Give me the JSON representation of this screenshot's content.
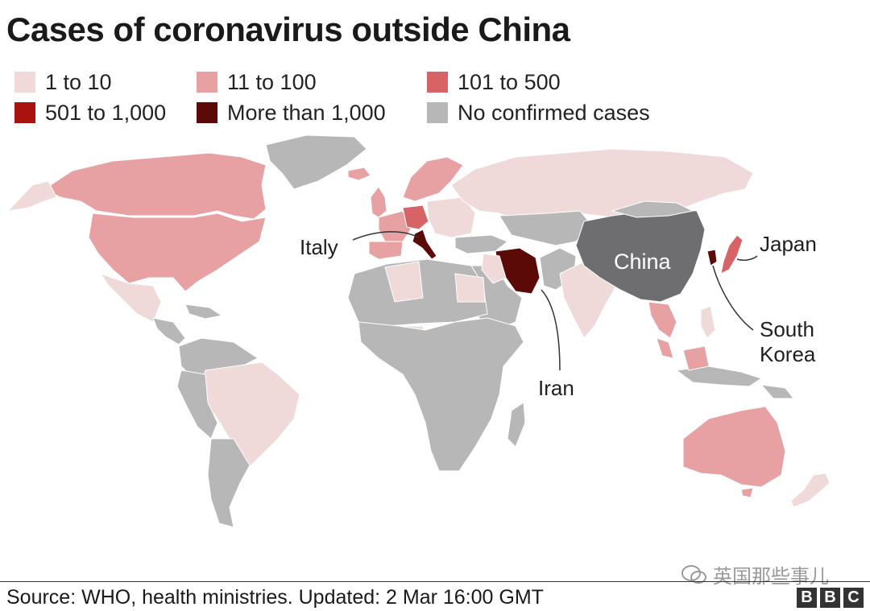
{
  "title": "Cases of coronavirus outside China",
  "legend": [
    {
      "label": "1 to 10",
      "color": "#f0d9d9"
    },
    {
      "label": "11 to 100",
      "color": "#e8a1a3"
    },
    {
      "label": "101 to 500",
      "color": "#d66466"
    },
    {
      "label": "501 to 1,000",
      "color": "#a8120f"
    },
    {
      "label": "More than 1,000",
      "color": "#5b0a08"
    },
    {
      "label": "No confirmed cases",
      "color": "#b7b7b7"
    }
  ],
  "map_labels": {
    "italy": "Italy",
    "china": "China",
    "japan": "Japan",
    "south_korea": "South Korea",
    "iran": "Iran"
  },
  "colors": {
    "china": "#6e6e70",
    "no_cases": "#b7b7b7"
  },
  "watermark": "英国那些事儿",
  "source": "Source: WHO, health ministries. Updated: 2 Mar 16:00 GMT",
  "logo": "BBC"
}
